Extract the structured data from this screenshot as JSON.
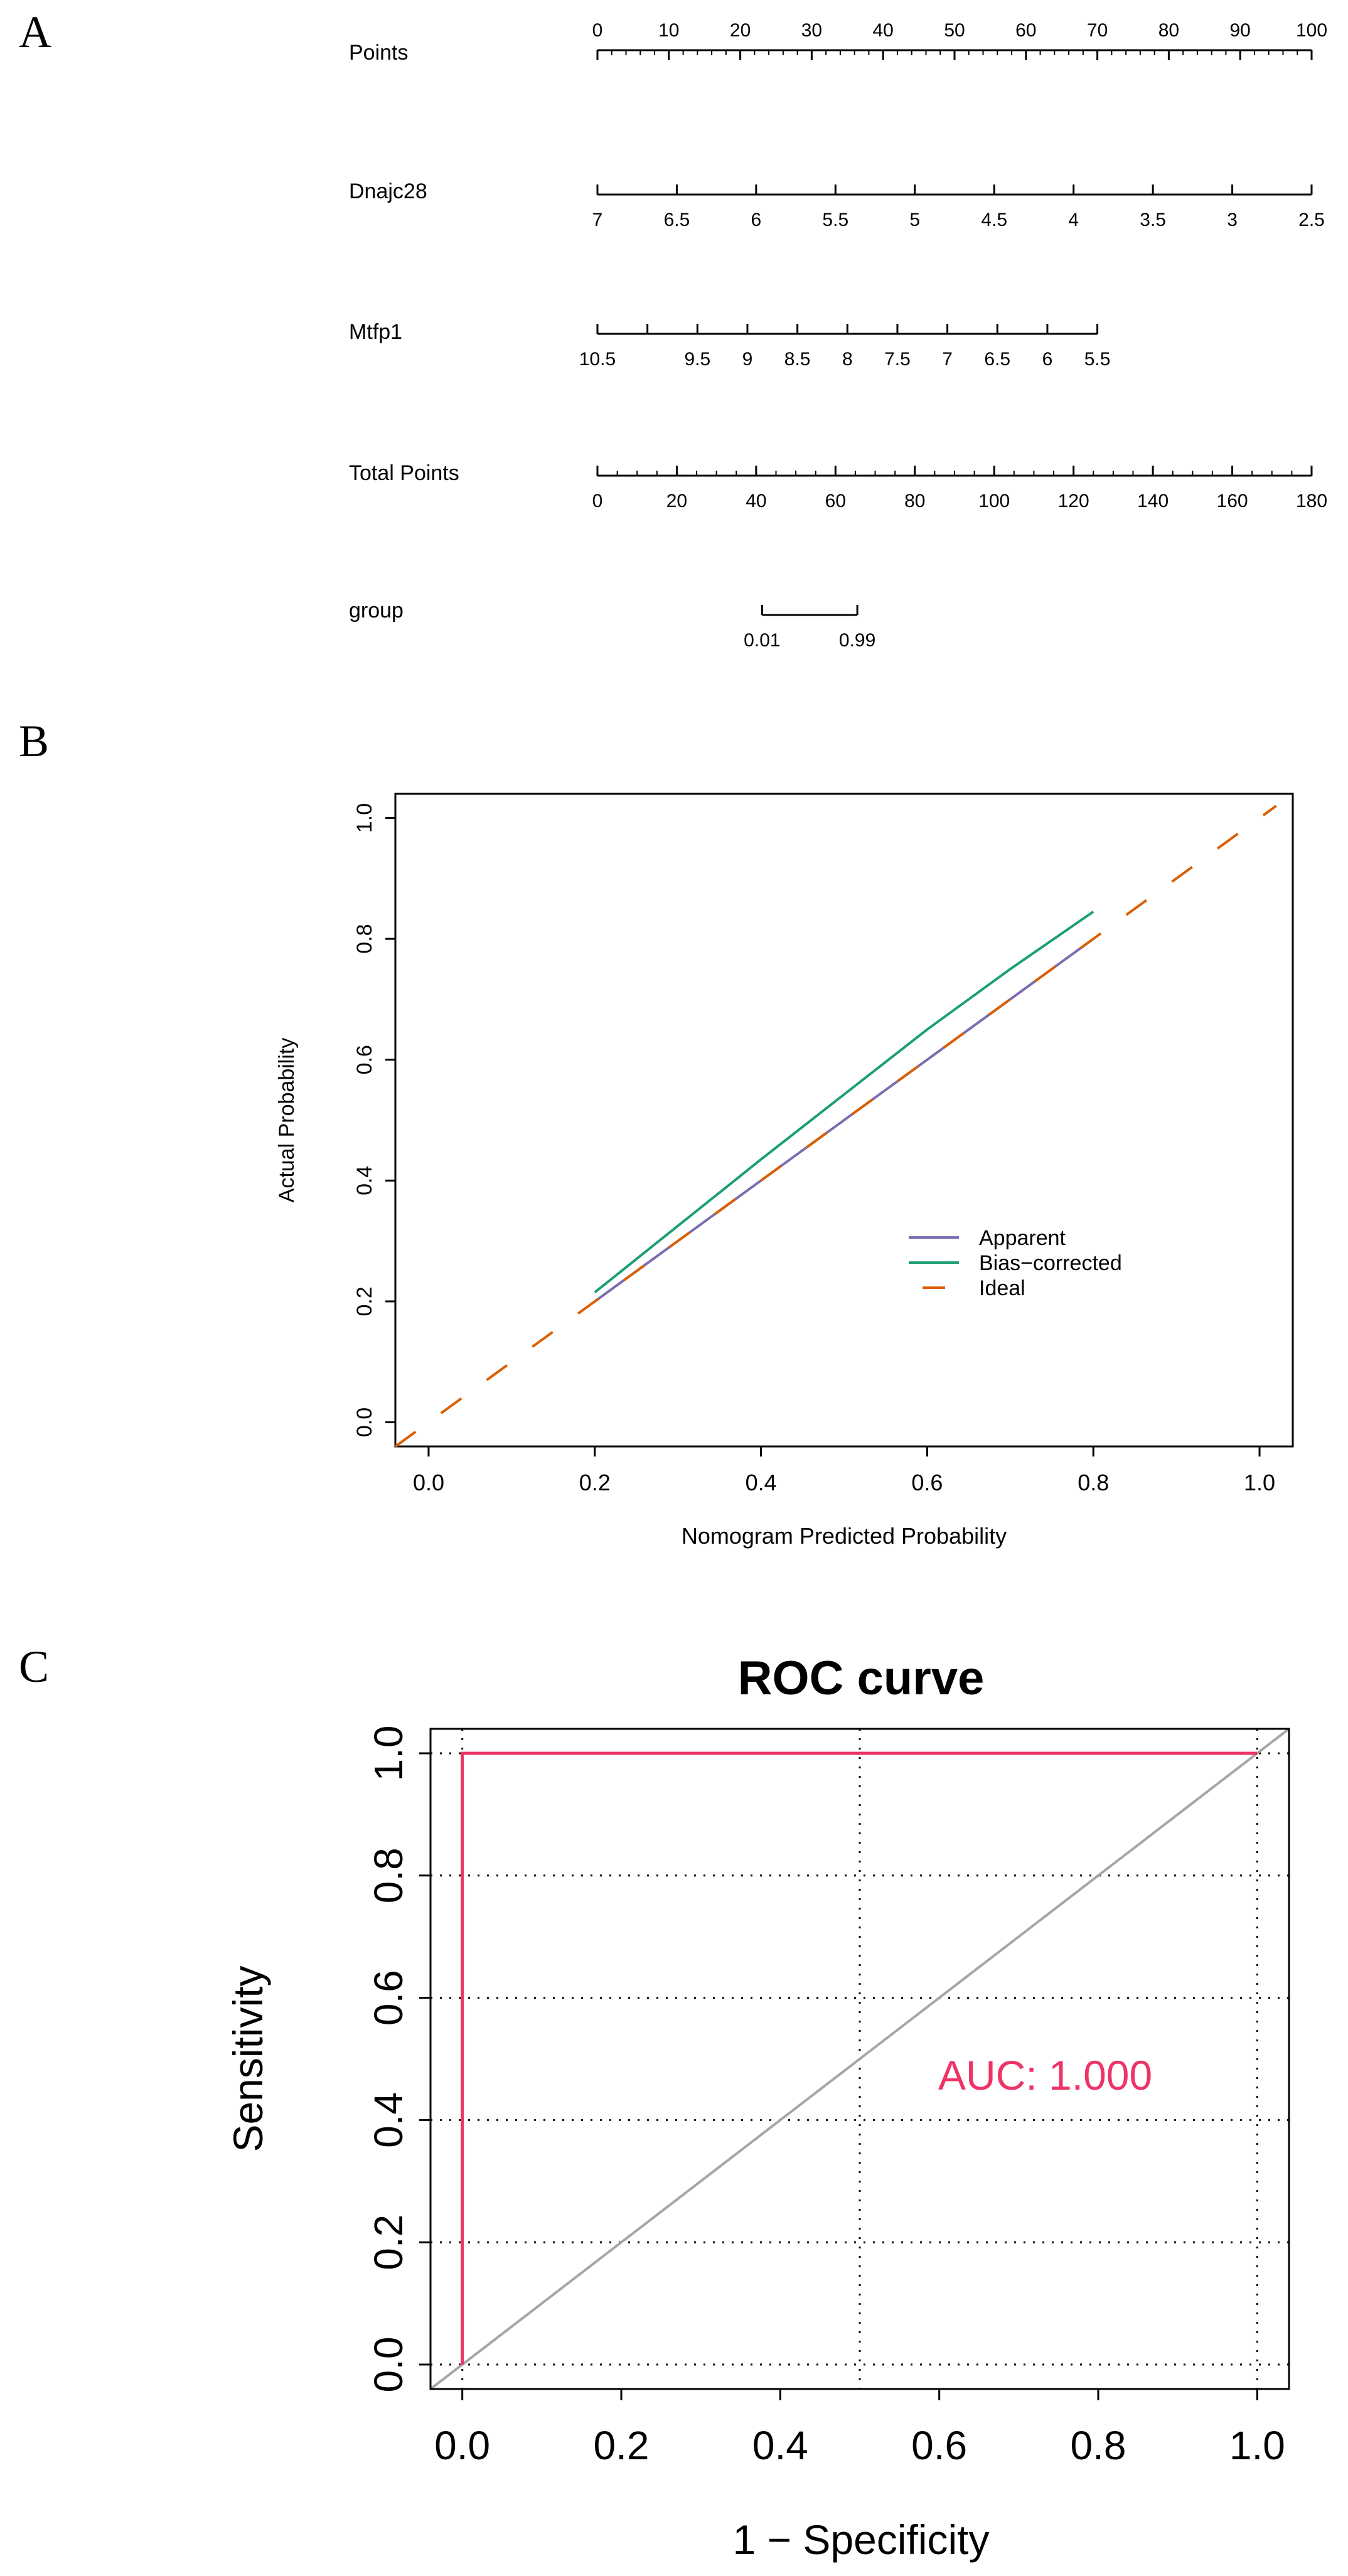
{
  "panels": {
    "a": "A",
    "b": "B",
    "c": "C"
  },
  "chart_data": [
    {
      "type": "nomogram",
      "rows": [
        {
          "label": "Points",
          "axis_min": 0,
          "axis_max": 100,
          "tick_labels": [
            "0",
            "10",
            "20",
            "30",
            "40",
            "50",
            "60",
            "70",
            "80",
            "90",
            "100"
          ],
          "tick_values": [
            0,
            10,
            20,
            30,
            40,
            50,
            60,
            70,
            80,
            90,
            100
          ],
          "minor_step": 2,
          "labels_position": "above"
        },
        {
          "label": "Dnajc28",
          "axis_min": 0,
          "axis_max": 100,
          "tick_labels": [
            "7",
            "6.5",
            "6",
            "5.5",
            "5",
            "4.5",
            "4",
            "3.5",
            "3",
            "2.5"
          ],
          "tick_values": [
            0,
            11.11,
            22.22,
            33.33,
            44.44,
            55.56,
            66.67,
            77.78,
            88.89,
            100
          ],
          "labels_position": "below"
        },
        {
          "label": "Mtfp1",
          "axis_min": 0,
          "axis_max": 100,
          "tick_labels": [
            "10.5",
            "",
            "9.5",
            "9",
            "8.5",
            "8",
            "7.5",
            "7",
            "6.5",
            "6",
            "5.5"
          ],
          "tick_values": [
            0,
            7,
            14,
            21,
            28,
            35,
            42,
            49,
            56,
            63,
            70
          ],
          "labels_position": "below"
        },
        {
          "label": "Total Points",
          "axis_min": 0,
          "axis_max": 180,
          "tick_labels": [
            "0",
            "20",
            "40",
            "60",
            "80",
            "100",
            "120",
            "140",
            "160",
            "180"
          ],
          "tick_values": [
            0,
            20,
            40,
            60,
            80,
            100,
            120,
            140,
            160,
            180
          ],
          "minor_step": 5,
          "labels_position": "below"
        },
        {
          "label": "group",
          "axis_min": 0,
          "axis_max": 180,
          "tick_labels": [
            "0.01",
            "0.99"
          ],
          "tick_values": [
            41.5,
            65.5
          ],
          "labels_position": "below"
        }
      ]
    },
    {
      "type": "line",
      "xlabel": "Nomogram Predicted Probability",
      "ylabel": "Actual Probability",
      "xlim": [
        -0.04,
        1.04
      ],
      "ylim": [
        -0.04,
        1.04
      ],
      "xticks": [
        "0.0",
        "0.2",
        "0.4",
        "0.6",
        "0.8",
        "1.0"
      ],
      "yticks": [
        "0.0",
        "0.2",
        "0.4",
        "0.6",
        "0.8",
        "1.0"
      ],
      "legend_position": "bottom-right",
      "series": [
        {
          "name": "Apparent",
          "color": "#7b6cb0",
          "dash": "solid",
          "x": [
            0.2,
            0.4,
            0.6,
            0.8
          ],
          "y": [
            0.2,
            0.4,
            0.6,
            0.8
          ]
        },
        {
          "name": "Bias−corrected",
          "color": "#1b9e77",
          "dash": "solid",
          "x": [
            0.2,
            0.4,
            0.6,
            0.7,
            0.8
          ],
          "y": [
            0.215,
            0.435,
            0.65,
            0.75,
            0.845
          ]
        },
        {
          "name": "Ideal",
          "color": "#d95f02",
          "dash": "dashed",
          "x": [
            -0.04,
            1.02
          ],
          "y": [
            -0.04,
            1.02
          ]
        }
      ]
    },
    {
      "type": "line",
      "title": "ROC curve",
      "xlabel": "1 − Specificity",
      "ylabel": "Sensitivity",
      "xlim": [
        -0.04,
        1.04
      ],
      "ylim": [
        -0.04,
        1.04
      ],
      "xticks": [
        "0.0",
        "0.2",
        "0.4",
        "0.6",
        "0.8",
        "1.0"
      ],
      "yticks": [
        "0.0",
        "0.2",
        "0.4",
        "0.6",
        "0.8",
        "1.0"
      ],
      "grid": true,
      "annotation": "AUC: 1.000",
      "annotation_color": "#ee3366",
      "series": [
        {
          "color": "#ee3366",
          "dash": "solid",
          "x": [
            0,
            0,
            1
          ],
          "y": [
            0,
            1,
            1
          ]
        },
        {
          "color": "#a6a6a6",
          "dash": "solid",
          "x": [
            -0.04,
            1.04
          ],
          "y": [
            -0.04,
            1.04
          ]
        }
      ]
    }
  ]
}
